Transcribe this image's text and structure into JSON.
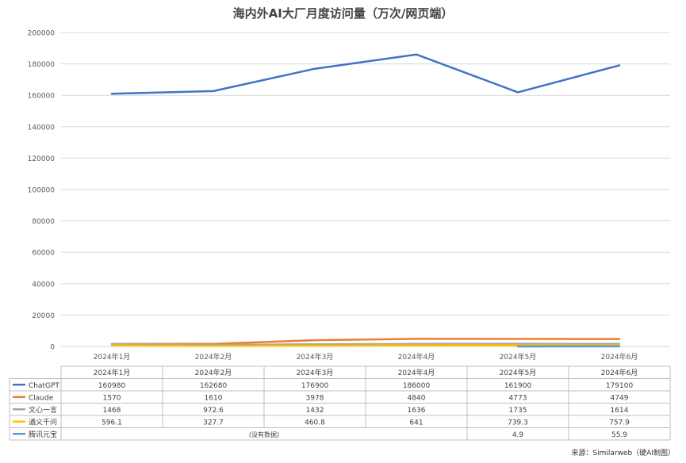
{
  "chart_data": {
    "type": "line",
    "title": "海内外AI大厂月度访问量（万次/网页端）",
    "categories": [
      "2024年1月",
      "2024年2月",
      "2024年3月",
      "2024年4月",
      "2024年5月",
      "2024年6月"
    ],
    "ylim": [
      0,
      200000
    ],
    "yticks": [
      "0",
      "20000",
      "40000",
      "60000",
      "80000",
      "100000",
      "120000",
      "140000",
      "160000",
      "180000",
      "200000"
    ],
    "grid": true,
    "legend": "data-table",
    "series": [
      {
        "name": "ChatGPT",
        "color": "#4472C4",
        "values": [
          160980,
          162680,
          176900,
          186000,
          161900,
          179100
        ],
        "labels": [
          "160980",
          "162680",
          "176900",
          "186000",
          "161900",
          "179100"
        ]
      },
      {
        "name": "Claude",
        "color": "#ED7D31",
        "values": [
          1570,
          1610,
          3978,
          4840,
          4773,
          4749
        ],
        "labels": [
          "1570",
          "1610",
          "3978",
          "4840",
          "4773",
          "4749"
        ]
      },
      {
        "name": "文心一言",
        "color": "#A5A5A5",
        "values": [
          1468,
          972.6,
          1432,
          1636,
          1735,
          1614
        ],
        "labels": [
          "1468",
          "972.6",
          "1432",
          "1636",
          "1735",
          "1614"
        ]
      },
      {
        "name": "通义千问",
        "color": "#FFC000",
        "values": [
          596.1,
          327.7,
          460.8,
          641,
          739.3,
          757.9
        ],
        "labels": [
          "596.1",
          "327.7",
          "460.8",
          "641",
          "739.3",
          "757.9"
        ]
      },
      {
        "name": "腾讯元宝",
        "color": "#5B9BD5",
        "values": [
          null,
          null,
          null,
          null,
          4.9,
          55.9
        ],
        "labels": [
          "",
          "",
          "",
          "",
          "4.9",
          "55.9"
        ],
        "no_data_label": "(没有数据)"
      }
    ]
  },
  "source": "来源：Similarweb（硬AI制图）"
}
